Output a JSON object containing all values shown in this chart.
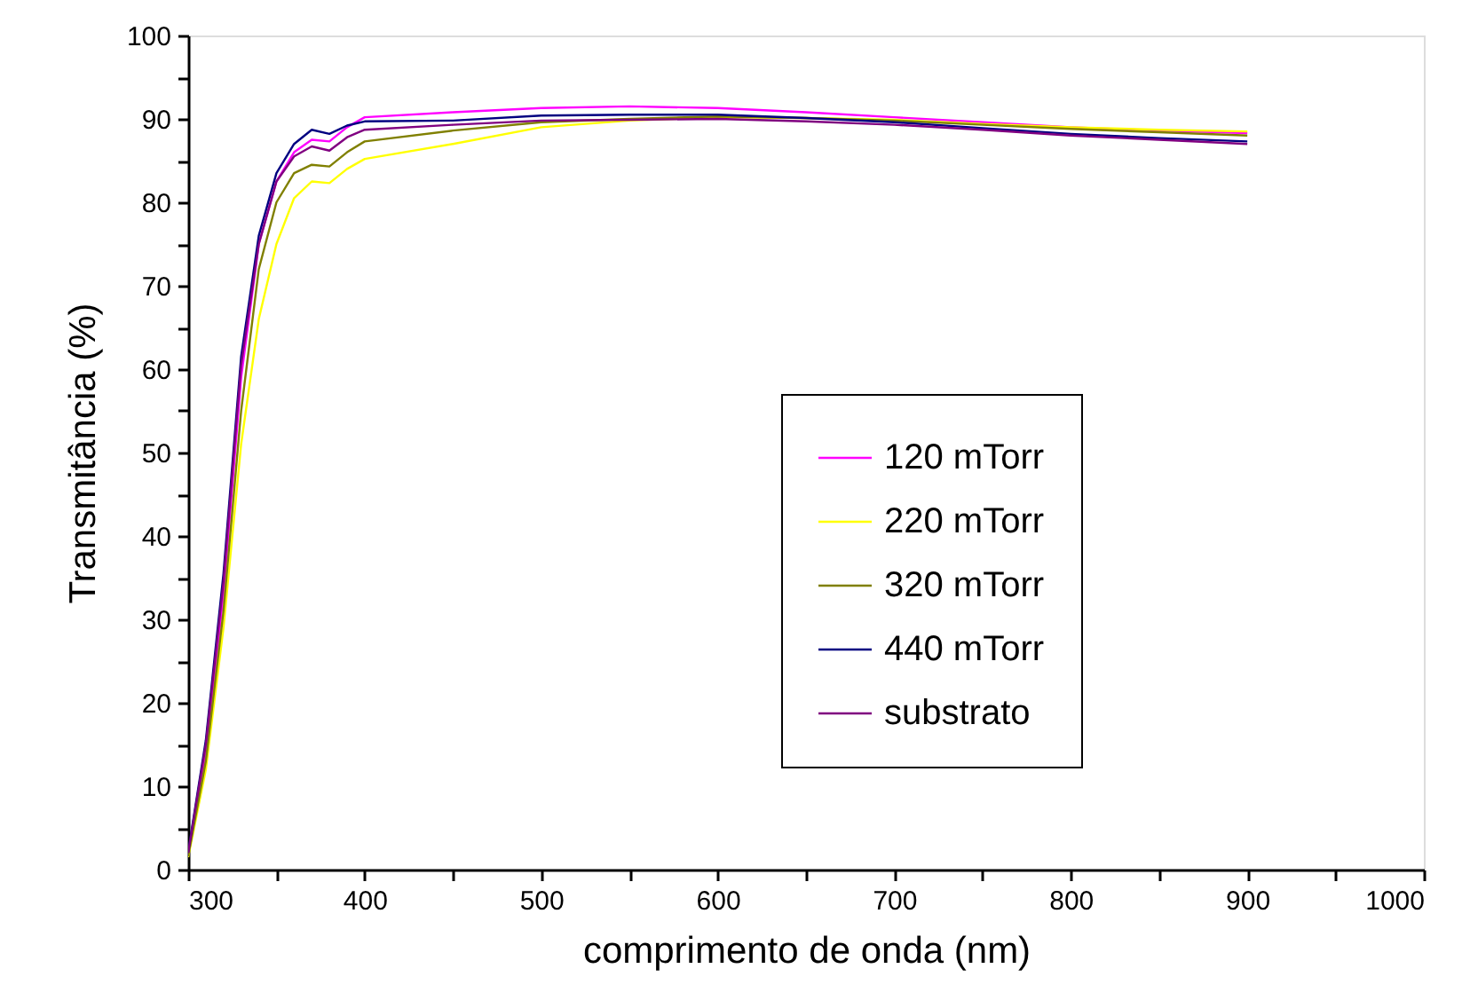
{
  "chart_data": {
    "type": "line",
    "xlabel": "comprimento de onda (nm)",
    "ylabel": "Transmitância (%)",
    "xlim": [
      300,
      1000
    ],
    "ylim": [
      0,
      100
    ],
    "xticks": [
      300,
      {
        "value": 350,
        "label": null
      },
      400,
      {
        "value": 450,
        "label": null
      },
      500,
      {
        "value": 550,
        "label": null
      },
      600,
      {
        "value": 650,
        "label": null
      },
      700,
      {
        "value": 750,
        "label": null
      },
      800,
      {
        "value": 850,
        "label": null
      },
      900,
      {
        "value": 950,
        "label": null
      },
      1000
    ],
    "yticks": [
      0,
      {
        "value": 5,
        "label": null
      },
      10,
      {
        "value": 15,
        "label": null
      },
      20,
      {
        "value": 25,
        "label": null
      },
      30,
      {
        "value": 35,
        "label": null
      },
      40,
      {
        "value": 45,
        "label": null
      },
      50,
      {
        "value": 55,
        "label": null
      },
      60,
      {
        "value": 65,
        "label": null
      },
      70,
      {
        "value": 75,
        "label": null
      },
      80,
      {
        "value": 85,
        "label": null
      },
      90,
      {
        "value": 95,
        "label": null
      },
      100
    ],
    "grid": false,
    "legend": "right",
    "marker": "none",
    "line_style": "solid",
    "x": [
      300,
      310,
      320,
      330,
      340,
      350,
      360,
      370,
      380,
      390,
      400,
      450,
      500,
      550,
      600,
      650,
      700,
      750,
      800,
      850,
      900
    ],
    "series": [
      {
        "name": "120 mTorr",
        "color": "#ff00ff",
        "values": [
          1.8,
          14,
          33,
          59,
          75,
          82.5,
          86,
          87.5,
          87.3,
          89,
          90.2,
          90.8,
          91.3,
          91.5,
          91.3,
          90.8,
          90.2,
          89.6,
          89,
          88.6,
          88.3
        ]
      },
      {
        "name": "220 mTorr",
        "color": "#ffff00",
        "values": [
          1.5,
          12,
          29,
          51,
          66,
          75,
          80.5,
          82.5,
          82.3,
          84,
          85.2,
          87,
          89,
          89.8,
          90.2,
          90.1,
          89.9,
          89.4,
          89,
          88.7,
          88.5
        ]
      },
      {
        "name": "320 mTorr",
        "color": "#808000",
        "values": [
          1.6,
          13,
          31,
          55,
          72,
          80,
          83.5,
          84.5,
          84.3,
          86,
          87.3,
          88.6,
          89.6,
          90,
          90.3,
          90.1,
          89.8,
          89.3,
          88.8,
          88.4,
          88
        ]
      },
      {
        "name": "440 mTorr",
        "color": "#000080",
        "values": [
          2.1,
          15.5,
          35.5,
          61.5,
          76,
          83.5,
          87,
          88.7,
          88.2,
          89.2,
          89.7,
          89.8,
          90.4,
          90.5,
          90.5,
          90.1,
          89.6,
          88.9,
          88.2,
          87.7,
          87.3
        ]
      },
      {
        "name": "substrato",
        "color": "#800080",
        "values": [
          2.0,
          15,
          34.5,
          60.5,
          75,
          82.5,
          85.5,
          86.7,
          86.2,
          87.8,
          88.7,
          89.3,
          89.8,
          89.9,
          90,
          89.7,
          89.3,
          88.7,
          88,
          87.5,
          87
        ]
      }
    ]
  }
}
